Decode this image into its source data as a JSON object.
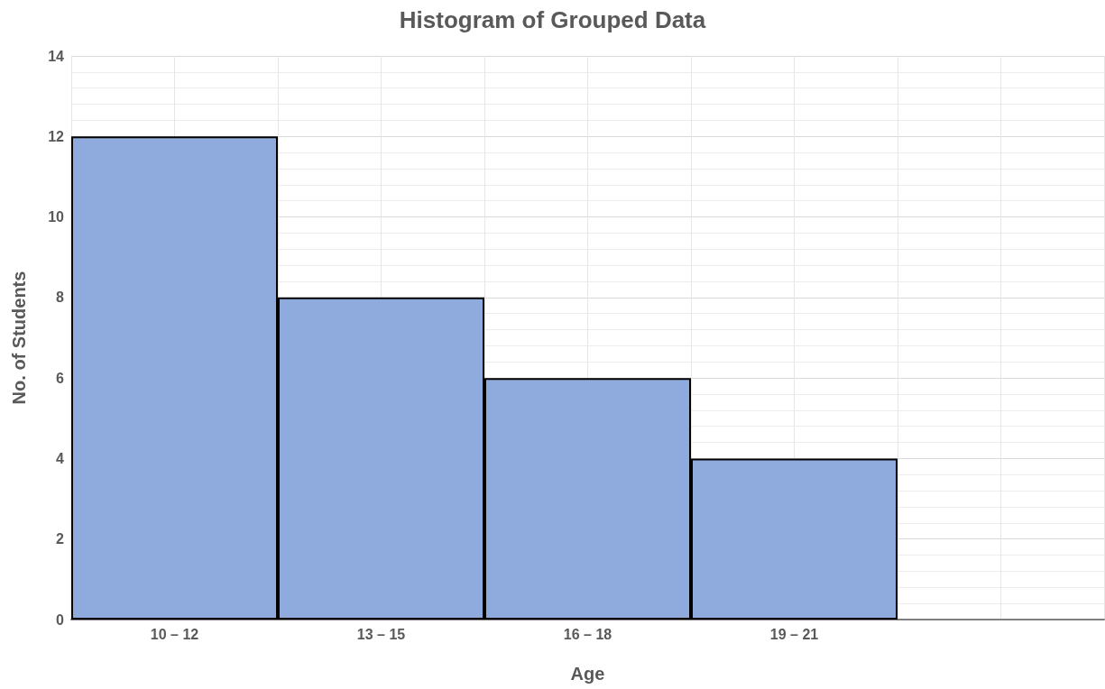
{
  "chart_data": {
    "type": "bar",
    "title": "Histogram of Grouped Data",
    "xlabel": "Age",
    "ylabel": "No. of Students",
    "categories": [
      "10 – 12",
      "13 – 15",
      "16 – 18",
      "19 – 21",
      null
    ],
    "values": [
      12,
      8,
      6,
      4,
      null
    ],
    "color": "#8faadc",
    "ylim": [
      0,
      14
    ],
    "yticks": [
      0,
      2,
      4,
      6,
      8,
      10,
      12,
      14
    ],
    "grid": true
  }
}
